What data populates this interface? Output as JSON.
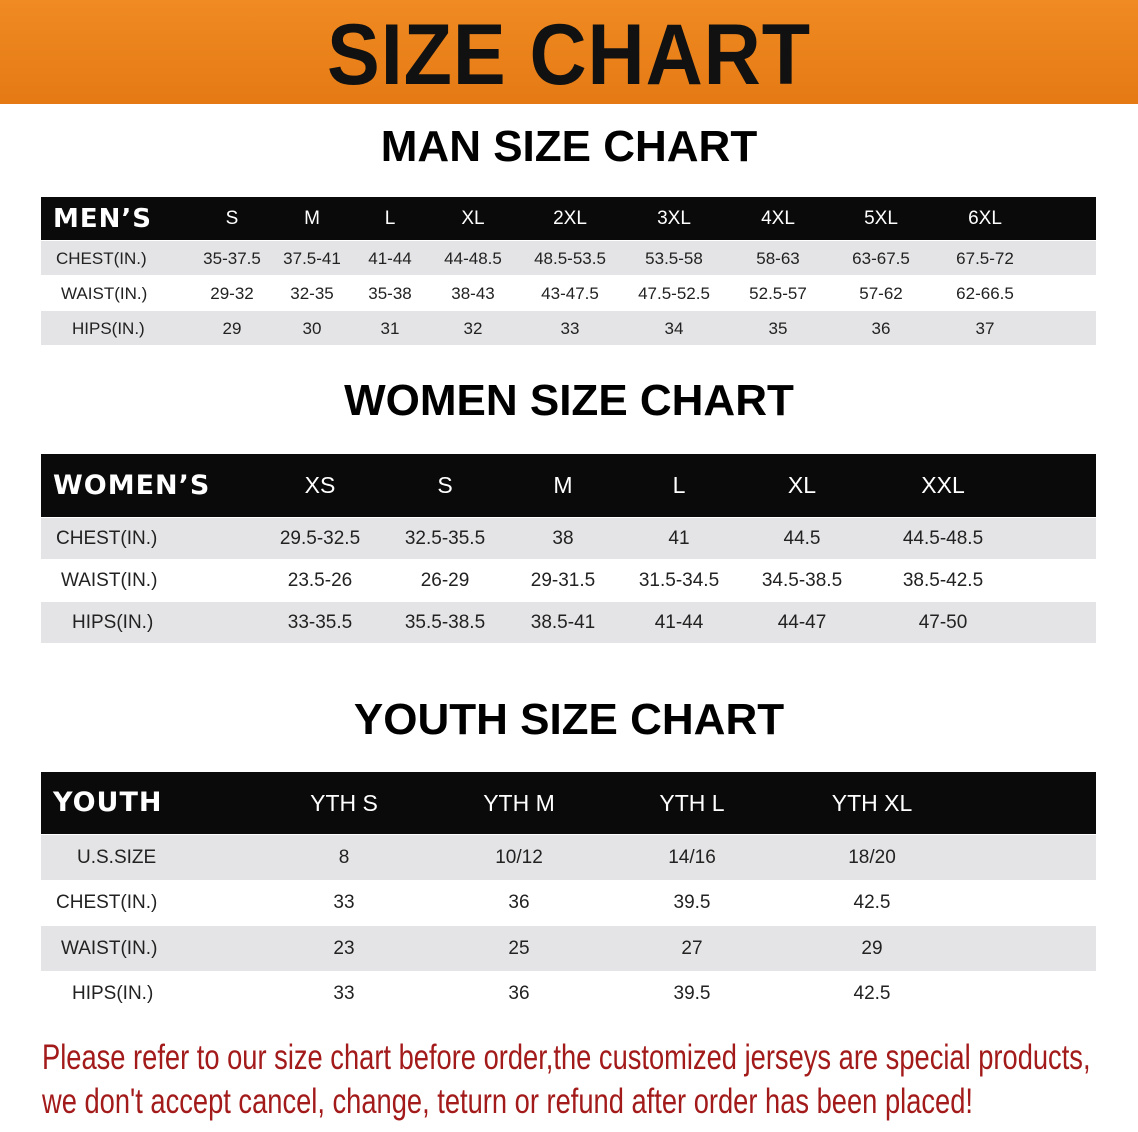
{
  "banner": {
    "title": "SIZE CHART",
    "color": "#e8801a"
  },
  "men": {
    "title": "MAN SIZE CHART",
    "header": "MEN’S",
    "sizes": [
      "S",
      "M",
      "L",
      "XL",
      "2XL",
      "3XL",
      "4XL",
      "5XL",
      "6XL"
    ],
    "rows": [
      {
        "label": "CHEST(IN.)",
        "values": [
          "35-37.5",
          "37.5-41",
          "41-44",
          "44-48.5",
          "48.5-53.5",
          "53.5-58",
          "58-63",
          "63-67.5",
          "67.5-72"
        ]
      },
      {
        "label": "WAIST(IN.)",
        "values": [
          "29-32",
          "32-35",
          "35-38",
          "38-43",
          "43-47.5",
          "47.5-52.5",
          "52.5-57",
          "57-62",
          "62-66.5"
        ]
      },
      {
        "label": "HIPS(IN.)",
        "values": [
          "29",
          "30",
          "31",
          "32",
          "33",
          "34",
          "35",
          "36",
          "37"
        ]
      }
    ]
  },
  "women": {
    "title": "WOMEN SIZE CHART",
    "header": "WOMEN’S",
    "sizes": [
      "XS",
      "S",
      "M",
      "L",
      "XL",
      "XXL"
    ],
    "rows": [
      {
        "label": "CHEST(IN.)",
        "values": [
          "29.5-32.5",
          "32.5-35.5",
          "38",
          "41",
          "44.5",
          "44.5-48.5"
        ]
      },
      {
        "label": "WAIST(IN.)",
        "values": [
          "23.5-26",
          "26-29",
          "29-31.5",
          "31.5-34.5",
          "34.5-38.5",
          "38.5-42.5"
        ]
      },
      {
        "label": "HIPS(IN.)",
        "values": [
          "33-35.5",
          "35.5-38.5",
          "38.5-41",
          "41-44",
          "44-47",
          "47-50"
        ]
      }
    ]
  },
  "youth": {
    "title": "YOUTH SIZE CHART",
    "header": "YOUTH",
    "sizes": [
      "YTH S",
      "YTH M",
      "YTH L",
      "YTH XL"
    ],
    "rows": [
      {
        "label": "U.S.SIZE",
        "values": [
          "8",
          "10/12",
          "14/16",
          "18/20"
        ]
      },
      {
        "label": "CHEST(IN.)",
        "values": [
          "33",
          "36",
          "39.5",
          "42.5"
        ]
      },
      {
        "label": "WAIST(IN.)",
        "values": [
          "23",
          "25",
          "27",
          "29"
        ]
      },
      {
        "label": "HIPS(IN.)",
        "values": [
          "33",
          "36",
          "39.5",
          "42.5"
        ]
      }
    ]
  },
  "notice": {
    "line1": "Please refer to our size chart before order,the customized jerseys are special products,",
    "line2": "we don't accept cancel, change, teturn or refund after order has been placed!",
    "color": "#a31a1a"
  }
}
